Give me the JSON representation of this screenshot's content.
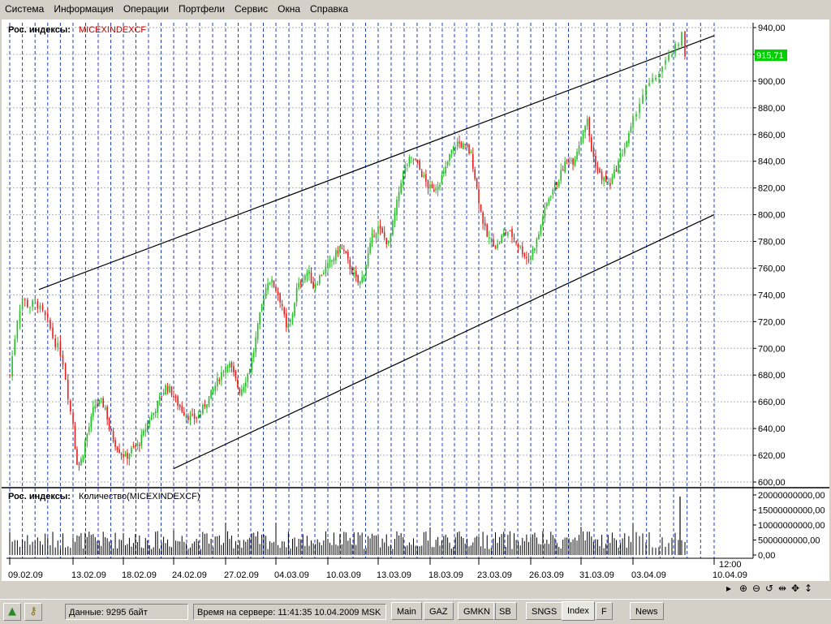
{
  "menu": [
    "Система",
    "Информация",
    "Операции",
    "Портфели",
    "Сервис",
    "Окна",
    "Справка"
  ],
  "price_panel": {
    "label_prefix": "Рос. индексы:",
    "instrument": "MICEXINDEXCF",
    "y_ticks": [
      "940,00",
      "920,00",
      "900,00",
      "880,00",
      "860,00",
      "840,00",
      "820,00",
      "800,00",
      "780,00",
      "760,00",
      "740,00",
      "720,00",
      "700,00",
      "680,00",
      "660,00",
      "640,00",
      "620,00",
      "600,00"
    ],
    "last_price_label": "915,71"
  },
  "volume_panel": {
    "label_prefix": "Рос. индексы:",
    "label_series": "Количество(MICEXINDEXCF)",
    "y_ticks": [
      "20000000000,00",
      "15000000000,00",
      "10000000000,00",
      "5000000000,00",
      "0,00"
    ]
  },
  "x_axis": {
    "time_label": "12:00",
    "date_labels": [
      "09.02.09",
      "13.02.09",
      "18.02.09",
      "24.02.09",
      "27.02.09",
      "04.03.09",
      "10.03.09",
      "13.03.09",
      "18.03.09",
      "23.03.09",
      "26.03.09",
      "31.03.09",
      "03.04.09",
      "10.04.09"
    ]
  },
  "chart_data": {
    "type": "candlestick",
    "instrument": "MICEXINDEXCF",
    "date_range": [
      "09.02.09",
      "10.04.09"
    ],
    "ylim": [
      600,
      940
    ],
    "last_price": 915.71,
    "trend_channel": {
      "upper": [
        {
          "date": "11.02.09",
          "value": 744
        },
        {
          "date": "10.04.09",
          "value": 934
        }
      ],
      "lower": [
        {
          "date": "20.02.09",
          "value": 610
        },
        {
          "date": "10.04.09",
          "value": 800
        }
      ]
    },
    "close_path": [
      [
        0,
        680
      ],
      [
        0.12,
        722
      ],
      [
        0.2,
        738
      ],
      [
        0.3,
        731
      ],
      [
        0.4,
        735
      ],
      [
        0.5,
        728
      ],
      [
        0.6,
        720
      ],
      [
        0.66,
        712
      ],
      [
        0.7,
        705
      ],
      [
        0.78,
        700
      ],
      [
        0.85,
        688
      ],
      [
        0.95,
        655
      ],
      [
        1.02,
        640
      ],
      [
        1.05,
        620
      ],
      [
        1.1,
        612
      ],
      [
        1.18,
        618
      ],
      [
        1.25,
        632
      ],
      [
        1.35,
        645
      ],
      [
        1.42,
        657
      ],
      [
        1.55,
        660
      ],
      [
        1.65,
        655
      ],
      [
        1.72,
        640
      ],
      [
        1.82,
        630
      ],
      [
        1.95,
        622
      ],
      [
        2.05,
        618
      ],
      [
        2.18,
        625
      ],
      [
        2.3,
        628
      ],
      [
        2.4,
        636
      ],
      [
        2.5,
        646
      ],
      [
        2.6,
        652
      ],
      [
        2.72,
        662
      ],
      [
        2.85,
        672
      ],
      [
        2.95,
        668
      ],
      [
        3.05,
        660
      ],
      [
        3.2,
        652
      ],
      [
        3.35,
        647
      ],
      [
        3.5,
        650
      ],
      [
        3.6,
        658
      ],
      [
        3.72,
        666
      ],
      [
        3.85,
        676
      ],
      [
        3.95,
        684
      ],
      [
        4.05,
        690
      ],
      [
        4.12,
        684
      ],
      [
        4.2,
        676
      ],
      [
        4.28,
        668
      ],
      [
        4.35,
        672
      ],
      [
        4.45,
        682
      ],
      [
        4.55,
        696
      ],
      [
        4.65,
        718
      ],
      [
        4.75,
        738
      ],
      [
        4.85,
        752
      ],
      [
        4.95,
        748
      ],
      [
        5.05,
        740
      ],
      [
        5.12,
        732
      ],
      [
        5.2,
        714
      ],
      [
        5.3,
        722
      ],
      [
        5.4,
        744
      ],
      [
        5.52,
        753
      ],
      [
        5.62,
        758
      ],
      [
        5.72,
        746
      ],
      [
        5.82,
        752
      ],
      [
        5.92,
        758
      ],
      [
        6.05,
        764
      ],
      [
        6.15,
        770
      ],
      [
        6.25,
        776
      ],
      [
        6.35,
        770
      ],
      [
        6.45,
        760
      ],
      [
        6.55,
        752
      ],
      [
        6.62,
        748
      ],
      [
        6.7,
        754
      ],
      [
        6.8,
        770
      ],
      [
        6.9,
        786
      ],
      [
        7.0,
        790
      ],
      [
        7.1,
        784
      ],
      [
        7.2,
        778
      ],
      [
        7.32,
        800
      ],
      [
        7.45,
        828
      ],
      [
        7.58,
        840
      ],
      [
        7.7,
        842
      ],
      [
        7.82,
        832
      ],
      [
        7.95,
        822
      ],
      [
        8.05,
        818
      ],
      [
        8.18,
        824
      ],
      [
        8.3,
        832
      ],
      [
        8.42,
        846
      ],
      [
        8.55,
        854
      ],
      [
        8.65,
        852
      ],
      [
        8.75,
        850
      ],
      [
        8.85,
        844
      ],
      [
        8.95,
        822
      ],
      [
        9.05,
        800
      ],
      [
        9.15,
        784
      ],
      [
        9.25,
        780
      ],
      [
        9.35,
        776
      ],
      [
        9.45,
        784
      ],
      [
        9.55,
        788
      ],
      [
        9.65,
        784
      ],
      [
        9.75,
        778
      ],
      [
        9.85,
        772
      ],
      [
        9.95,
        766
      ],
      [
        10.05,
        774
      ],
      [
        10.15,
        784
      ],
      [
        10.25,
        800
      ],
      [
        10.35,
        812
      ],
      [
        10.45,
        820
      ],
      [
        10.55,
        826
      ],
      [
        10.65,
        836
      ],
      [
        10.75,
        842
      ],
      [
        10.85,
        840
      ],
      [
        10.95,
        852
      ],
      [
        11.05,
        866
      ],
      [
        11.12,
        870
      ],
      [
        11.2,
        848
      ],
      [
        11.28,
        838
      ],
      [
        11.35,
        830
      ],
      [
        11.45,
        826
      ],
      [
        11.55,
        822
      ],
      [
        11.65,
        832
      ],
      [
        11.75,
        842
      ],
      [
        11.85,
        852
      ],
      [
        11.95,
        862
      ],
      [
        12.05,
        880
      ],
      [
        12.15,
        894
      ],
      [
        12.25,
        900
      ],
      [
        12.35,
        910
      ],
      [
        12.45,
        918
      ],
      [
        12.52,
        925
      ],
      [
        12.56,
        930
      ],
      [
        12.6,
        934
      ],
      [
        12.64,
        916
      ]
    ]
  }
}
